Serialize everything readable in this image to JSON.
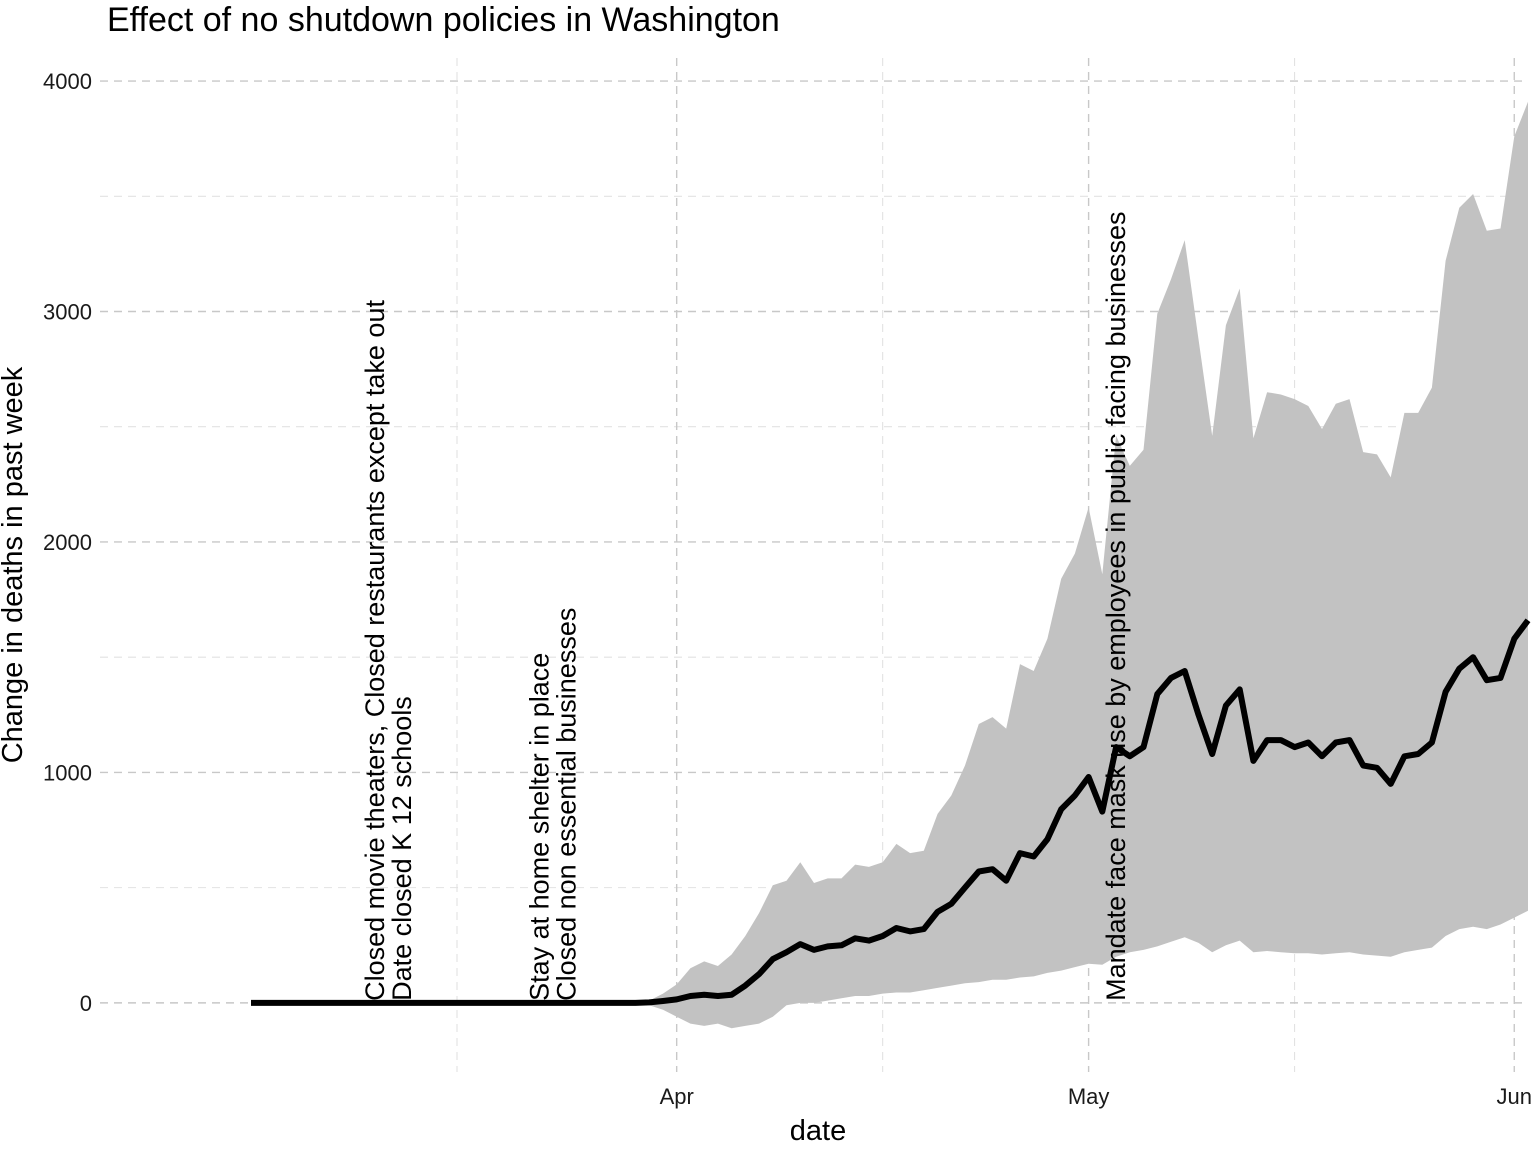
{
  "chart_data": {
    "type": "line",
    "title": "Effect of no shutdown policies in Washington",
    "xlabel": "date",
    "ylabel": "Change in deaths in past week",
    "x_start": "2020-03-01",
    "x_end": "2020-06-01",
    "xlim": [
      "2020-02-19",
      "2020-06-02"
    ],
    "ylim": [
      -300,
      4100
    ],
    "x_ticks": [
      {
        "date": "2020-04-01",
        "label": "Apr"
      },
      {
        "date": "2020-05-01",
        "label": "May"
      },
      {
        "date": "2020-06-01",
        "label": "Jun"
      }
    ],
    "x_minor_ticks": [
      "2020-03-16",
      "2020-04-16",
      "2020-05-16"
    ],
    "y_ticks": [
      0,
      1000,
      2000,
      3000,
      4000
    ],
    "y_minor_ticks": [
      500,
      1500,
      2500,
      3500
    ],
    "grid": true,
    "colors": {
      "line": "#000000",
      "band": "#c2c2c2",
      "grid": "#c8c8c8"
    },
    "series": [
      {
        "type": "line",
        "values": [
          0,
          0,
          0,
          0,
          0,
          0,
          0,
          0,
          0,
          0,
          0,
          0,
          0,
          0,
          0,
          0,
          0,
          0,
          0,
          0,
          0,
          0,
          0,
          0,
          0,
          0,
          0,
          0,
          0,
          2,
          8,
          15,
          30,
          35,
          30,
          35,
          75,
          125,
          190,
          220,
          255,
          230,
          245,
          250,
          280,
          270,
          290,
          325,
          310,
          320,
          395,
          430,
          500,
          570,
          580,
          530,
          650,
          635,
          710,
          840,
          900,
          980,
          830,
          1110,
          1070,
          1110,
          1340,
          1410,
          1440,
          1250,
          1080,
          1290,
          1360,
          1050,
          1140,
          1140,
          1110,
          1130,
          1070,
          1130,
          1140,
          1030,
          1020,
          950,
          1070,
          1080,
          1130,
          1350,
          1450,
          1500,
          1400,
          1410,
          1580,
          1660
        ]
      },
      {
        "type": "band-upper",
        "values": [
          0,
          0,
          0,
          0,
          0,
          0,
          0,
          0,
          0,
          0,
          0,
          0,
          0,
          0,
          0,
          0,
          0,
          0,
          0,
          0,
          0,
          0,
          0,
          0,
          0,
          0,
          0,
          0,
          0,
          10,
          40,
          80,
          150,
          180,
          160,
          210,
          290,
          390,
          510,
          530,
          610,
          520,
          540,
          540,
          600,
          590,
          610,
          690,
          650,
          660,
          820,
          900,
          1030,
          1210,
          1240,
          1190,
          1470,
          1440,
          1580,
          1840,
          1950,
          2150,
          1860,
          2460,
          2330,
          2400,
          2990,
          3140,
          3310,
          2880,
          2460,
          2940,
          3100,
          2450,
          2650,
          2640,
          2620,
          2590,
          2490,
          2600,
          2620,
          2390,
          2380,
          2280,
          2560,
          2560,
          2670,
          3220,
          3450,
          3510,
          3350,
          3360,
          3760,
          3910
        ]
      },
      {
        "type": "band-lower",
        "values": [
          0,
          0,
          0,
          0,
          0,
          0,
          0,
          0,
          0,
          0,
          0,
          0,
          0,
          0,
          0,
          0,
          0,
          0,
          0,
          0,
          0,
          0,
          0,
          0,
          0,
          0,
          0,
          0,
          0,
          -10,
          -30,
          -60,
          -90,
          -100,
          -90,
          -110,
          -100,
          -90,
          -60,
          -10,
          0,
          0,
          10,
          20,
          30,
          30,
          40,
          45,
          45,
          55,
          65,
          75,
          85,
          90,
          100,
          100,
          110,
          115,
          130,
          140,
          155,
          170,
          165,
          200,
          220,
          230,
          245,
          265,
          285,
          260,
          220,
          250,
          270,
          220,
          225,
          220,
          215,
          215,
          210,
          215,
          220,
          210,
          205,
          200,
          220,
          230,
          240,
          290,
          320,
          330,
          320,
          340,
          370,
          400
        ]
      }
    ],
    "annotations": [
      {
        "date": "2020-03-11",
        "lines": [
          "Closed movie theaters, Closed restaurants except take out",
          "Date closed K 12 schools"
        ]
      },
      {
        "date": "2020-03-23",
        "lines": [
          "Stay at home  shelter in place",
          "Closed non essential businesses"
        ]
      },
      {
        "date": "2020-05-03",
        "lines": [
          "Mandate face mask use by employees in public facing businesses"
        ]
      }
    ]
  }
}
